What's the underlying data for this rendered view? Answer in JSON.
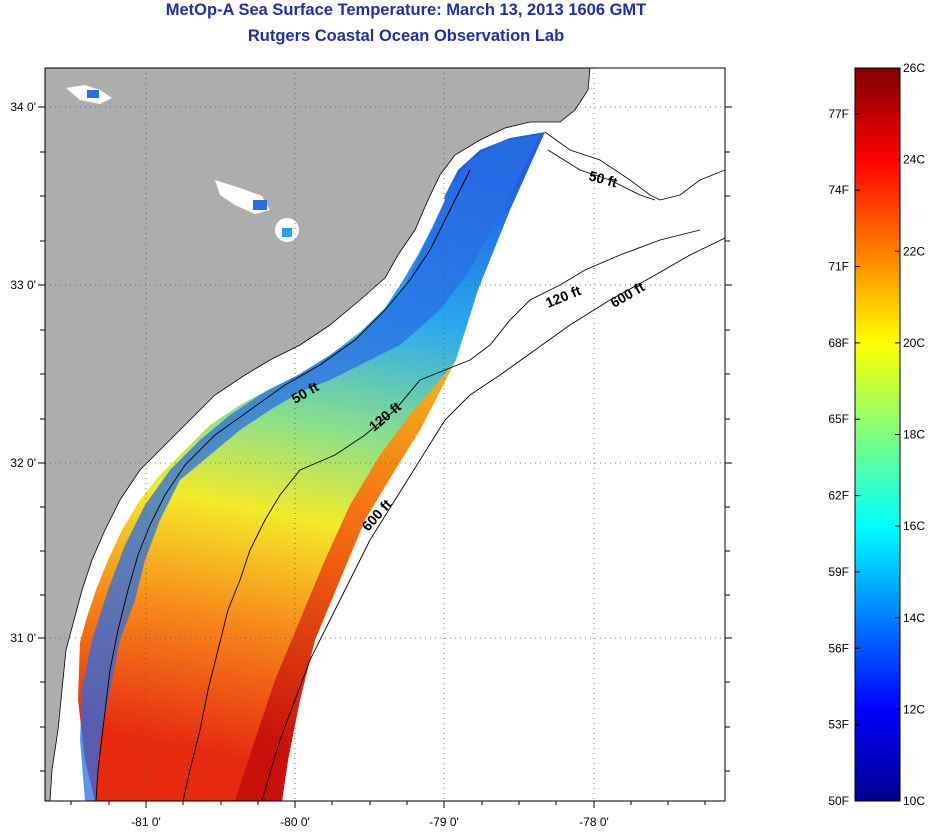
{
  "title": "MetOp-A Sea Surface Temperature:  March 13, 2013 1606 GMT",
  "subtitle": "Rutgers Coastal Ocean Observation Lab",
  "map": {
    "lat_labels": [
      "34 0'",
      "33 0'",
      "32 0'",
      "31 0'"
    ],
    "lon_labels": [
      "-81 0'",
      "-80 0'",
      "-79 0'",
      "-78 0'"
    ],
    "isobaths": [
      {
        "label": "50 ft"
      },
      {
        "label": "120 ft"
      },
      {
        "label": "600 ft"
      },
      {
        "label": "50 ft"
      },
      {
        "label": "120 ft"
      },
      {
        "label": "600 ft"
      }
    ],
    "colors": {
      "land": "#adadad",
      "ocean_nodata": "#ffffff",
      "grid": "#555555"
    }
  },
  "colorbar": {
    "celsius_labels": [
      "26C",
      "24C",
      "22C",
      "20C",
      "18C",
      "16C",
      "14C",
      "12C",
      "10C"
    ],
    "fahrenheit_labels": [
      "77F",
      "74F",
      "71F",
      "68F",
      "65F",
      "62F",
      "59F",
      "56F",
      "53F",
      "50F"
    ],
    "range_c": [
      10,
      26
    ],
    "colormap": "jet"
  }
}
